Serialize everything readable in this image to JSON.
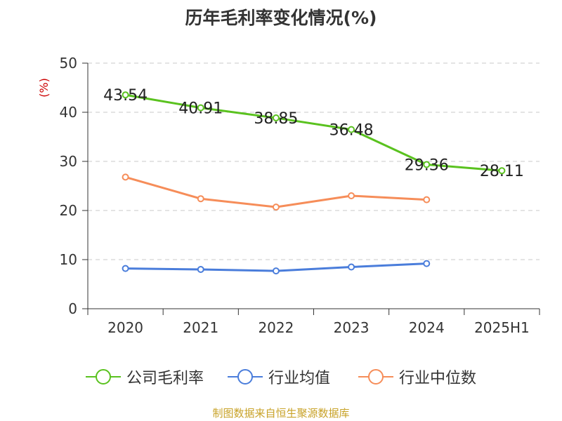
{
  "chart_data": {
    "type": "line",
    "title": "历年毛利率变化情况(%)",
    "ylabel": "(%)",
    "xlabel": "",
    "categories": [
      "2020",
      "2021",
      "2022",
      "2023",
      "2024",
      "2025H1"
    ],
    "ylim": [
      0,
      50
    ],
    "yticks": [
      0,
      10,
      20,
      30,
      40,
      50
    ],
    "grid": true,
    "legend_position": "bottom",
    "series": [
      {
        "name": "公司毛利率",
        "color": "#5ac21f",
        "values": [
          43.54,
          40.91,
          38.85,
          36.48,
          29.36,
          28.11
        ],
        "labels": [
          "43.54",
          "40.91",
          "38.85",
          "36.48",
          "29.36",
          "28.11"
        ]
      },
      {
        "name": "行业均值",
        "color": "#4a7ddb",
        "values": [
          8.2,
          8.0,
          7.7,
          8.5,
          9.2,
          null
        ]
      },
      {
        "name": "行业中位数",
        "color": "#f68d59",
        "values": [
          26.8,
          22.4,
          20.7,
          23.0,
          22.2,
          null
        ]
      }
    ]
  },
  "source": "制图数据来自恒生聚源数据库"
}
